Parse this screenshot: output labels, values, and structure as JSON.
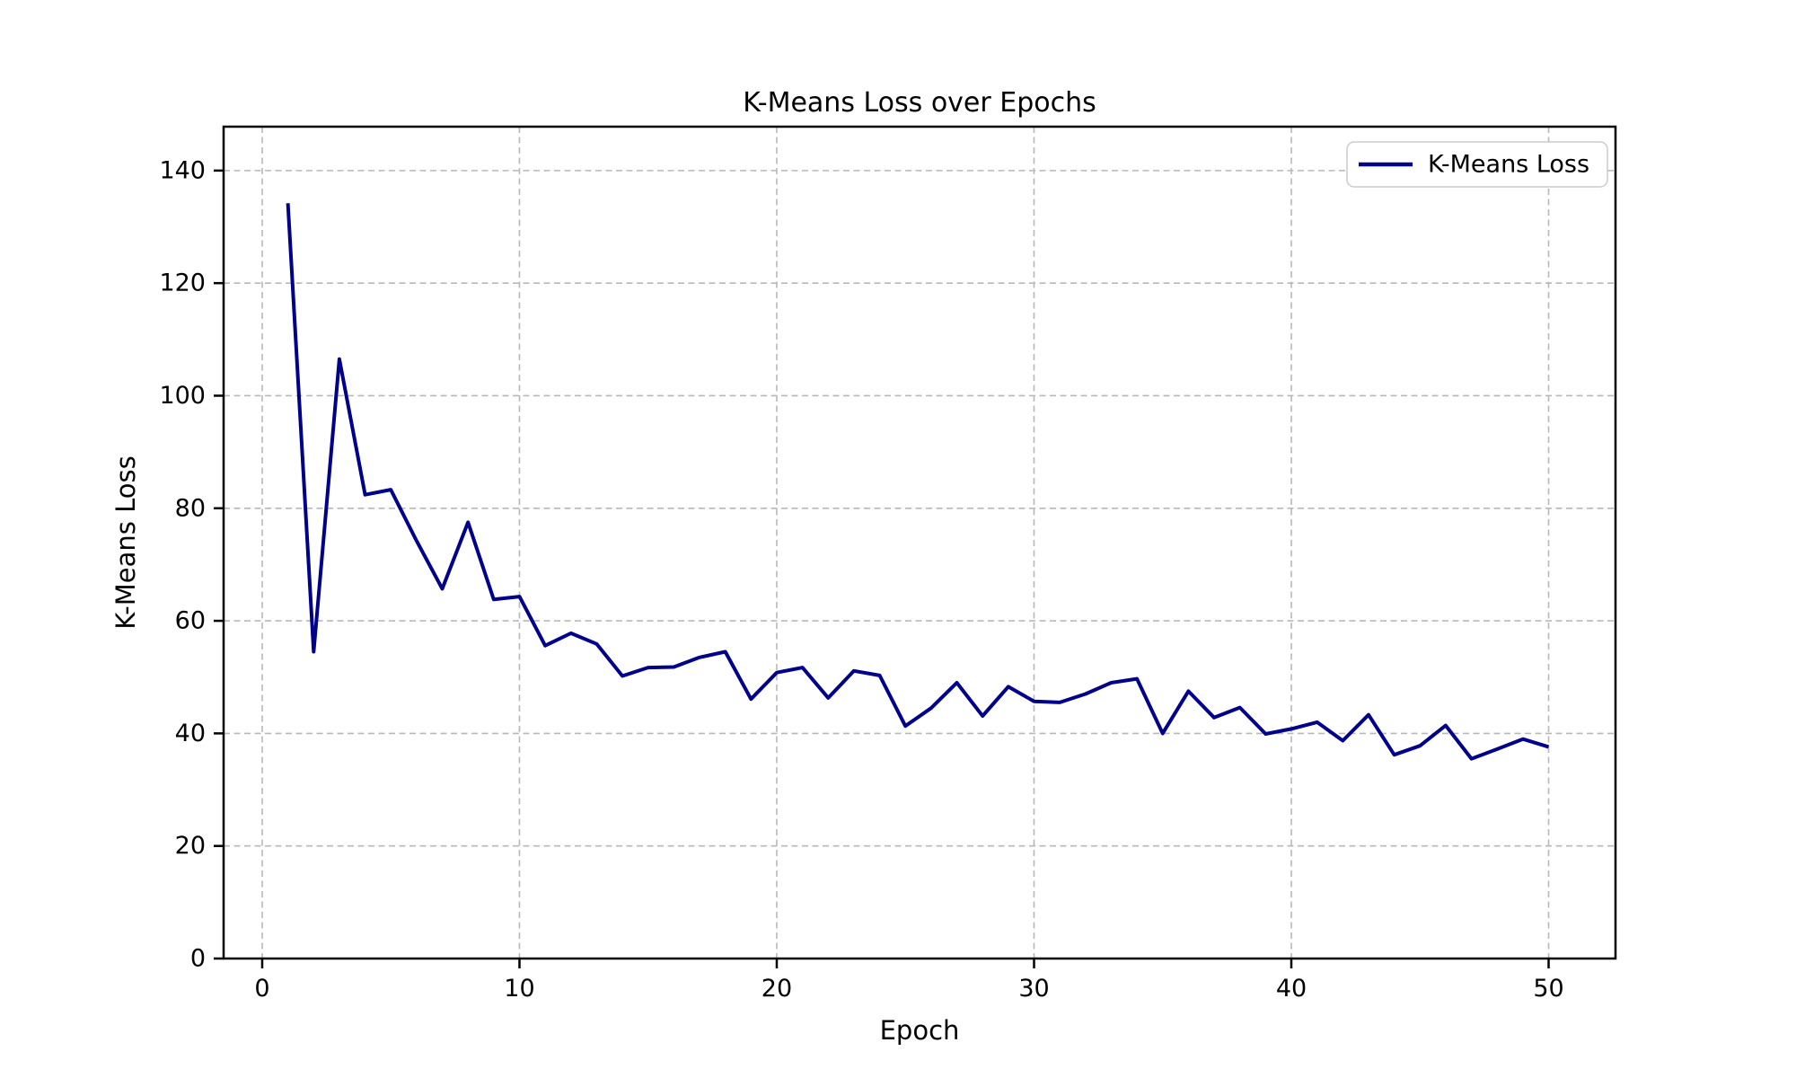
{
  "figure": {
    "background": "#ffffff"
  },
  "chart_data": {
    "type": "line",
    "title": "K-Means Loss over Epochs",
    "xlabel": "Epoch",
    "ylabel": "K-Means Loss",
    "x": [
      1,
      2,
      3,
      4,
      5,
      6,
      7,
      8,
      9,
      10,
      11,
      12,
      13,
      14,
      15,
      16,
      17,
      18,
      19,
      20,
      21,
      22,
      23,
      24,
      25,
      26,
      27,
      28,
      29,
      30,
      31,
      32,
      33,
      34,
      35,
      36,
      37,
      38,
      39,
      40,
      41,
      42,
      43,
      44,
      45,
      46,
      47,
      48,
      49,
      50
    ],
    "series": [
      {
        "name": "K-Means Loss",
        "color": "#00008B",
        "values": [
          134.2,
          54.5,
          106.5,
          82.4,
          83.3,
          74.2,
          65.7,
          77.5,
          63.8,
          64.3,
          55.6,
          57.8,
          55.9,
          50.2,
          51.7,
          51.8,
          53.5,
          54.5,
          46.1,
          50.8,
          51.7,
          46.3,
          51.1,
          50.3,
          41.3,
          44.5,
          49.0,
          43.1,
          48.3,
          45.7,
          45.5,
          47.0,
          49.0,
          49.7,
          40.0,
          47.5,
          42.8,
          44.6,
          39.9,
          40.8,
          42.0,
          38.7,
          43.3,
          36.2,
          37.8,
          41.4,
          35.5,
          37.2,
          39.0,
          37.6
        ]
      }
    ],
    "xlim": [
      -1.5,
      52.6
    ],
    "ylim": [
      0,
      147.8
    ],
    "xticks": [
      0,
      10,
      20,
      30,
      40,
      50
    ],
    "yticks": [
      0,
      20,
      40,
      60,
      80,
      100,
      120,
      140
    ],
    "grid": true,
    "grid_linestyle": "dashed",
    "legend": {
      "position": "upper right",
      "entries": [
        "K-Means Loss"
      ]
    },
    "colors": {
      "line": "#00008B",
      "grid": "#b8b8b8",
      "spine": "#000000",
      "tick": "#000000",
      "legend_border": "#cccccc",
      "legend_background": "#ffffff",
      "text": "#000000"
    }
  }
}
